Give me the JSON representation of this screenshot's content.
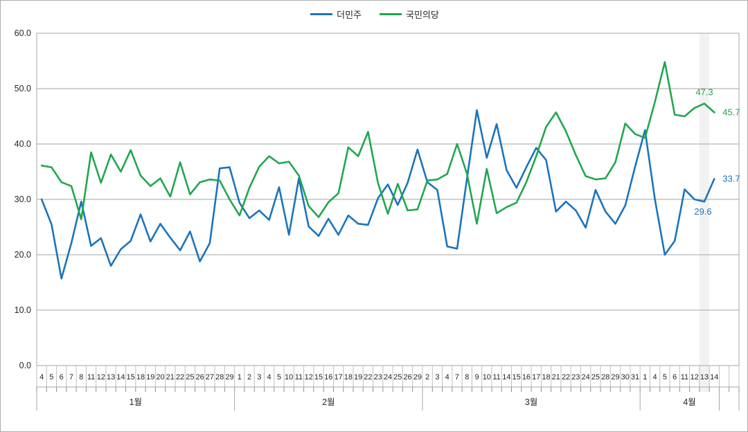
{
  "chart_data": {
    "type": "line",
    "title": "",
    "legend_position": "top-center",
    "grid": true,
    "y_axis": {
      "min": 0,
      "max": 60,
      "step": 10,
      "tick_labels": [
        "0.0",
        "10.0",
        "20.0",
        "30.0",
        "40.0",
        "50.0",
        "60.0"
      ]
    },
    "x_axis": {
      "months": [
        {
          "label": "1월",
          "days": [
            "4",
            "5",
            "6",
            "7",
            "8",
            "11",
            "12",
            "13",
            "14",
            "15",
            "18",
            "19",
            "20",
            "21",
            "22",
            "25",
            "26",
            "27",
            "28",
            "29"
          ]
        },
        {
          "label": "2월",
          "days": [
            "1",
            "2",
            "3",
            "4",
            "5",
            "10",
            "11",
            "12",
            "15",
            "16",
            "17",
            "18",
            "19",
            "22",
            "23",
            "24",
            "25",
            "26",
            "29"
          ]
        },
        {
          "label": "3월",
          "days": [
            "2",
            "3",
            "4",
            "7",
            "8",
            "9",
            "10",
            "11",
            "14",
            "15",
            "16",
            "17",
            "18",
            "21",
            "22",
            "23",
            "24",
            "25",
            "28",
            "29",
            "30",
            "31"
          ]
        },
        {
          "label": "4월",
          "days": [
            "1",
            "4",
            "5",
            "6",
            "11",
            "12",
            "13",
            "14"
          ]
        }
      ],
      "trailing_empty_cells": 2
    },
    "series": [
      {
        "name": "더민주",
        "color": "#1b74bc",
        "values": [
          30.0,
          25.5,
          15.7,
          22.1,
          29.6,
          21.6,
          23.0,
          18.0,
          21.0,
          22.5,
          27.3,
          22.4,
          25.6,
          23.1,
          20.8,
          24.2,
          18.8,
          22.1,
          35.6,
          35.8,
          29.4,
          26.6,
          28.0,
          26.3,
          32.2,
          23.6,
          33.8,
          25.1,
          23.4,
          26.5,
          23.6,
          27.1,
          25.6,
          25.4,
          30.2,
          32.7,
          29.0,
          33.0,
          39.0,
          33.1,
          31.7,
          21.5,
          21.1,
          33.8,
          46.1,
          37.5,
          43.6,
          35.3,
          32.1,
          35.8,
          39.3,
          37.1,
          27.8,
          29.6,
          28.0,
          24.9,
          31.7,
          27.8,
          25.6,
          28.9,
          35.9,
          42.5,
          30.0,
          20.0,
          22.5,
          31.8,
          30.0,
          29.6,
          33.7
        ]
      },
      {
        "name": "국민의당",
        "color": "#21a650",
        "values": [
          36.1,
          35.8,
          33.1,
          32.4,
          26.4,
          38.5,
          33.0,
          38.1,
          35.0,
          38.9,
          34.3,
          32.4,
          33.8,
          30.5,
          36.7,
          30.9,
          33.1,
          33.6,
          33.4,
          30.0,
          27.1,
          32.1,
          35.9,
          37.8,
          36.5,
          36.8,
          34.3,
          28.8,
          26.8,
          29.5,
          31.1,
          39.4,
          37.8,
          42.2,
          33.0,
          27.4,
          32.8,
          28.0,
          28.2,
          33.4,
          33.6,
          34.6,
          40.0,
          34.6,
          25.6,
          35.5,
          27.5,
          28.6,
          29.4,
          33.1,
          37.8,
          43.1,
          45.7,
          42.3,
          38.0,
          34.2,
          33.6,
          33.8,
          36.7,
          43.7,
          41.8,
          41.1,
          47.6,
          54.8,
          45.3,
          45.0,
          46.5,
          47.3,
          45.7
        ]
      }
    ],
    "highlight_point_index": 67,
    "annotations": [
      {
        "series_index": 1,
        "point_index": 67,
        "text": "47.3",
        "placement": "above"
      },
      {
        "series_index": 1,
        "point_index": 68,
        "text": "45.7",
        "placement": "right"
      },
      {
        "series_index": 0,
        "point_index": 68,
        "text": "33.7",
        "placement": "right"
      },
      {
        "series_index": 0,
        "point_index": 67,
        "text": "29.6",
        "placement": "below"
      }
    ],
    "colors": {
      "gridline": "#a6a6a6",
      "cell_separator": "#bfbfbf",
      "tick": "#8c8c8c",
      "axis_text": "#262626",
      "highlight_band": "#f2f2f2"
    }
  }
}
